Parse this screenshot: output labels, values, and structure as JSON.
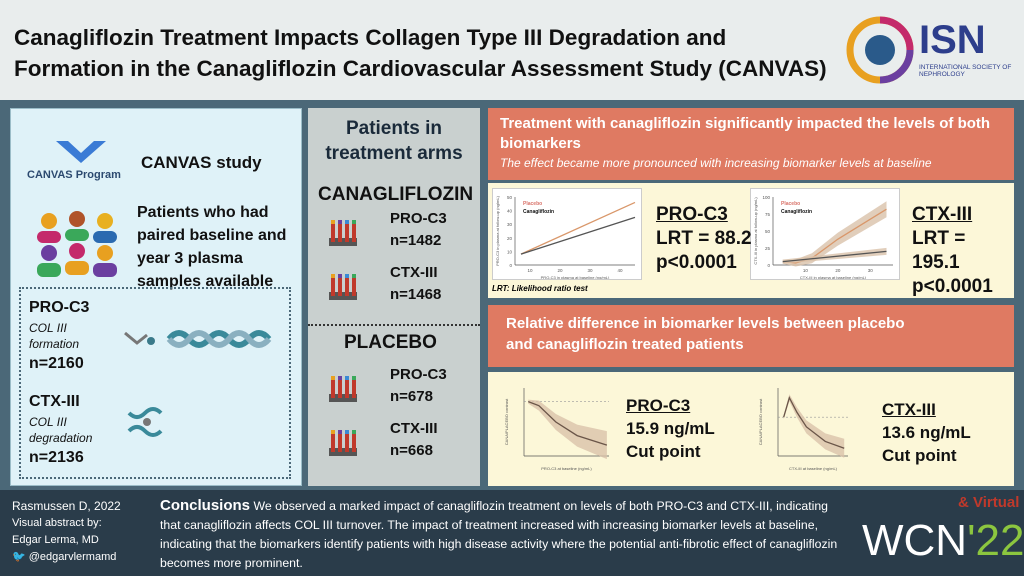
{
  "header": {
    "title": "Canagliflozin Treatment Impacts Collagen Type III Degradation and Formation in the Canagliflozin Cardiovascular Assessment Study (CANVAS)",
    "logo_text": "ISN",
    "logo_subtitle": "INTERNATIONAL SOCIETY OF NEPHROLOGY"
  },
  "left": {
    "program_logo": "CANVAS Program",
    "study": "CANVAS study",
    "patients": "Patients who had paired baseline and year 3 plasma samples available",
    "markers": [
      {
        "name": "PRO-C3",
        "desc1": "COL III",
        "desc2": "formation",
        "n": "n=2160"
      },
      {
        "name": "CTX-III",
        "desc1": "COL III",
        "desc2": "degradation",
        "n": "n=2136"
      }
    ]
  },
  "mid": {
    "title": "Patients in treatment arms",
    "arms": [
      {
        "name": "CANAGLIFLOZIN",
        "items": [
          {
            "m": "PRO-C3",
            "n": "n=1482"
          },
          {
            "m": "CTX-III",
            "n": "n=1468"
          }
        ]
      },
      {
        "name": "PLACEBO",
        "items": [
          {
            "m": "PRO-C3",
            "n": "n=678"
          },
          {
            "m": "CTX-III",
            "n": "n=668"
          }
        ]
      }
    ]
  },
  "right": {
    "h1": "Treatment with canagliflozin significantly impacted the levels of both biomarkers",
    "h1_sub": "The effect became more pronounced with increasing biomarker levels at baseline",
    "lrt": [
      {
        "name": "PRO-C3",
        "lrt": "LRT = 88.2",
        "p": "p<0.0001"
      },
      {
        "name": "CTX-III",
        "lrt": "LRT = 195.1",
        "p": "p<0.0001"
      }
    ],
    "lrt_note": "LRT: Likelihood ratio test",
    "h2": "Relative difference in biomarker levels between placebo and canagliflozin treated patients",
    "cut": [
      {
        "name": "PRO-C3",
        "value": "15.9 ng/mL",
        "label": "Cut point"
      },
      {
        "name": "CTX-III",
        "value": "13.6 ng/mL",
        "label": "Cut point"
      }
    ]
  },
  "chart_data": [
    {
      "type": "line",
      "title": "",
      "legend": [
        "Placebo",
        "Canagliflozin"
      ],
      "xlabel": "PRO-C3 in plasma at baseline (ng/mL)",
      "ylabel": "PRO-C3 in plasma at follow-up (ng/mL)",
      "xlim": [
        5,
        45
      ],
      "ylim": [
        0,
        50
      ],
      "xticks": [
        10,
        20,
        30,
        40
      ],
      "yticks": [
        0,
        10,
        20,
        30,
        40,
        50
      ],
      "series": [
        {
          "name": "Placebo",
          "x": [
            7,
            45
          ],
          "y": [
            8,
            46
          ]
        },
        {
          "name": "Canagliflozin",
          "x": [
            7,
            45
          ],
          "y": [
            8,
            35
          ]
        }
      ]
    },
    {
      "type": "line",
      "title": "",
      "legend": [
        "Placebo",
        "Canagliflozin"
      ],
      "xlabel": "CTX-III in plasma at baseline (ng/mL)",
      "ylabel": "CTX-III in plasma at follow-up (ng/mL)",
      "xlim": [
        0,
        37
      ],
      "ylim": [
        0,
        100
      ],
      "xticks": [
        10,
        20,
        30
      ],
      "yticks": [
        0,
        25,
        50,
        75,
        100
      ],
      "series": [
        {
          "name": "Placebo",
          "x": [
            3,
            7,
            12,
            20,
            35
          ],
          "y": [
            5,
            3,
            10,
            38,
            82
          ]
        },
        {
          "name": "Canagliflozin",
          "x": [
            3,
            35
          ],
          "y": [
            5,
            20
          ]
        }
      ]
    },
    {
      "type": "line",
      "xlabel": "PRO-C3 at baseline (ng/mL)",
      "ylabel": "CANA/PLACEBO contrast",
      "xlim": [
        5,
        45
      ],
      "ylim": [
        0.6,
        1.1
      ],
      "series": [
        {
          "name": "contrast",
          "x": [
            7,
            12,
            20,
            30,
            44
          ],
          "y": [
            1.0,
            0.97,
            0.85,
            0.75,
            0.68
          ]
        }
      ]
    },
    {
      "type": "line",
      "xlabel": "CTX-III at baseline (ng/mL)",
      "ylabel": "CANA/PLACEBO contrast",
      "xlim": [
        0,
        37
      ],
      "ylim": [
        0.6,
        1.3
      ],
      "series": [
        {
          "name": "contrast",
          "x": [
            3,
            6,
            10,
            15,
            25,
            35
          ],
          "y": [
            1.0,
            1.2,
            1.05,
            0.9,
            0.75,
            0.68
          ]
        }
      ]
    }
  ],
  "footer": {
    "author": "Rasmussen D, 2022",
    "va": "Visual abstract by:",
    "va_name": "Edgar Lerma, MD",
    "twitter": "@edgarvlermamd",
    "concl_title": "Conclusions",
    "concl": "We observed a marked impact of canagliflozin treatment on levels of both PRO-C3 and CTX-III, indicating that canagliflozin affects COL III turnover. The impact of treatment increased with increasing biomarker levels at baseline, indicating that the biomarkers identify patients with high disease activity where the potential anti-fibrotic effect of canagliflozin becomes more prominent.",
    "wcn": "WCN",
    "wcn_year": "'22",
    "virtual": "& Virtual"
  }
}
